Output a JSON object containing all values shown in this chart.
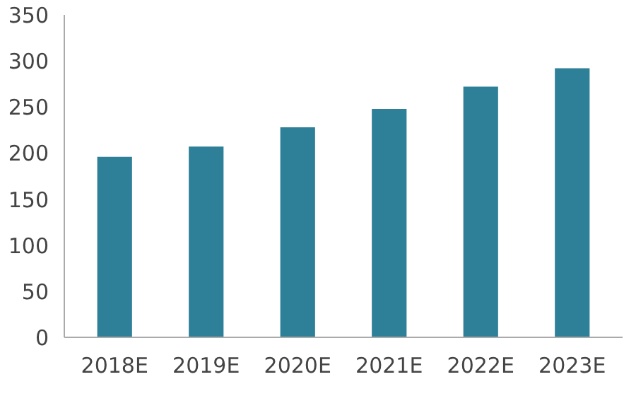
{
  "chart_data": {
    "type": "bar",
    "categories": [
      "2018E",
      "2019E",
      "2020E",
      "2021E",
      "2022E",
      "2023E"
    ],
    "values": [
      196,
      207,
      228,
      248,
      272,
      292
    ],
    "color": "#2e8099",
    "ylim": [
      0,
      350
    ],
    "yticks": [
      0,
      50,
      100,
      150,
      200,
      250,
      300,
      350
    ],
    "grid": false
  }
}
